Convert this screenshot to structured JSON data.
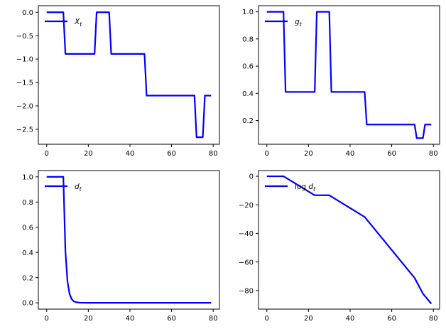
{
  "chart_data": [
    {
      "type": "line",
      "legend": {
        "prefix": "",
        "base": "X",
        "sub": "t"
      },
      "legend_loc": "upper-left",
      "color": "#0000ff",
      "xlim": [
        -4,
        83
      ],
      "ylim": [
        -2.82,
        0.14
      ],
      "xticks": [
        0,
        20,
        40,
        60,
        80
      ],
      "xticklabels": [
        "0",
        "20",
        "40",
        "60",
        "80"
      ],
      "yticks": [
        0.0,
        -0.5,
        -1.0,
        -1.5,
        -2.0,
        -2.5
      ],
      "yticklabels": [
        "0.0",
        "−0.5",
        "−1.0",
        "−1.5",
        "−2.0",
        "−2.5"
      ],
      "x": [
        0,
        8,
        9,
        23,
        24,
        30,
        31,
        47,
        48,
        71,
        72,
        75,
        76,
        79
      ],
      "y": [
        0,
        0,
        -0.89,
        -0.89,
        0,
        0,
        -0.89,
        -0.89,
        -1.78,
        -1.78,
        -2.67,
        -2.67,
        -1.78,
        -1.78
      ]
    },
    {
      "type": "line",
      "legend": {
        "prefix": "",
        "base": "g",
        "sub": "t"
      },
      "legend_loc": "upper-left",
      "color": "#0000ff",
      "xlim": [
        -4,
        83
      ],
      "ylim": [
        0.025,
        1.045
      ],
      "xticks": [
        0,
        20,
        40,
        60,
        80
      ],
      "xticklabels": [
        "0",
        "20",
        "40",
        "60",
        "80"
      ],
      "yticks": [
        0.2,
        0.4,
        0.6,
        0.8,
        1.0
      ],
      "yticklabels": [
        "0.2",
        "0.4",
        "0.6",
        "0.8",
        "1.0"
      ],
      "x": [
        0,
        8,
        9,
        23,
        24,
        30,
        31,
        47,
        48,
        71,
        72,
        75,
        76,
        79
      ],
      "y": [
        1,
        1,
        0.41,
        0.41,
        1,
        1,
        0.41,
        0.41,
        0.17,
        0.17,
        0.07,
        0.07,
        0.17,
        0.17
      ]
    },
    {
      "type": "line",
      "legend": {
        "prefix": "",
        "base": "d",
        "sub": "t"
      },
      "legend_loc": "upper-left",
      "color": "#0000ff",
      "xlim": [
        -4,
        83
      ],
      "ylim": [
        -0.05,
        1.05
      ],
      "xticks": [
        0,
        20,
        40,
        60,
        80
      ],
      "xticklabels": [
        "0",
        "20",
        "40",
        "60",
        "80"
      ],
      "yticks": [
        0.0,
        0.2,
        0.4,
        0.6,
        0.8,
        1.0
      ],
      "yticklabels": [
        "0.0",
        "0.2",
        "0.4",
        "0.6",
        "0.8",
        "1.0"
      ],
      "x": [
        0,
        8,
        9,
        10,
        11,
        12,
        13,
        14,
        16,
        18,
        20,
        79
      ],
      "y": [
        1,
        1,
        0.41,
        0.17,
        0.07,
        0.03,
        0.012,
        0.005,
        0.001,
        0.0003,
        0,
        0
      ]
    },
    {
      "type": "line",
      "legend": {
        "prefix": "log ",
        "base": "d",
        "sub": "t"
      },
      "legend_loc": "upper-left",
      "color": "#0000ff",
      "xlim": [
        -4,
        83
      ],
      "ylim": [
        -93,
        4
      ],
      "xticks": [
        0,
        20,
        40,
        60,
        80
      ],
      "xticklabels": [
        "0",
        "20",
        "40",
        "60",
        "80"
      ],
      "yticks": [
        0,
        -20,
        -40,
        -60,
        -80
      ],
      "yticklabels": [
        "0",
        "−20",
        "−40",
        "−60",
        "−80"
      ],
      "x": [
        0,
        8,
        23,
        30,
        47,
        71,
        75,
        79
      ],
      "y": [
        0,
        0,
        -13.3,
        -13.3,
        -28.5,
        -71.2,
        -82.2,
        -89.2
      ]
    }
  ]
}
